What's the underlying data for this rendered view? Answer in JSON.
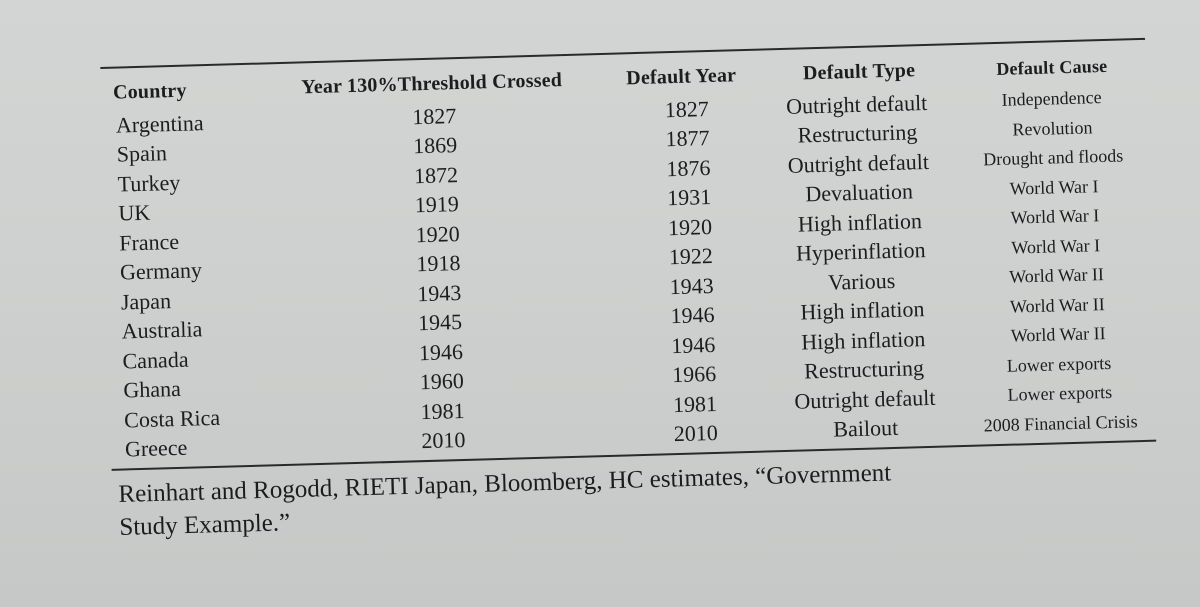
{
  "table": {
    "headers": {
      "country": "Country",
      "threshold": "Year 130%Threshold Crossed",
      "default_year": "Default Year",
      "default_type": "Default Type",
      "default_cause": "Default Cause"
    },
    "rows": [
      {
        "country": "Argentina",
        "threshold": "1827",
        "default_year": "1827",
        "default_type": "Outright default",
        "default_cause": "Independence"
      },
      {
        "country": "Spain",
        "threshold": "1869",
        "default_year": "1877",
        "default_type": "Restructuring",
        "default_cause": "Revolution"
      },
      {
        "country": "Turkey",
        "threshold": "1872",
        "default_year": "1876",
        "default_type": "Outright default",
        "default_cause": "Drought and floods"
      },
      {
        "country": "UK",
        "threshold": "1919",
        "default_year": "1931",
        "default_type": "Devaluation",
        "default_cause": "World War I"
      },
      {
        "country": "France",
        "threshold": "1920",
        "default_year": "1920",
        "default_type": "High inflation",
        "default_cause": "World War I"
      },
      {
        "country": "Germany",
        "threshold": "1918",
        "default_year": "1922",
        "default_type": "Hyperinflation",
        "default_cause": "World War I"
      },
      {
        "country": "Japan",
        "threshold": "1943",
        "default_year": "1943",
        "default_type": "Various",
        "default_cause": "World War II"
      },
      {
        "country": "Australia",
        "threshold": "1945",
        "default_year": "1946",
        "default_type": "High inflation",
        "default_cause": "World War II"
      },
      {
        "country": "Canada",
        "threshold": "1946",
        "default_year": "1946",
        "default_type": "High inflation",
        "default_cause": "World War II"
      },
      {
        "country": "Ghana",
        "threshold": "1960",
        "default_year": "1966",
        "default_type": "Restructuring",
        "default_cause": "Lower exports"
      },
      {
        "country": "Costa Rica",
        "threshold": "1981",
        "default_year": "1981",
        "default_type": "Outright default",
        "default_cause": "Lower exports"
      },
      {
        "country": "Greece",
        "threshold": "2010",
        "default_year": "2010",
        "default_type": "Bailout",
        "default_cause": "2008 Financial Crisis"
      }
    ]
  },
  "caption": {
    "line1": "Reinhart and Rogodd, RIETI Japan, Bloomberg, HC estimates, “Government",
    "line2": "Study Example.”"
  },
  "colors": {
    "paper": "#d0d2d1",
    "ink": "#1d1d1f"
  }
}
